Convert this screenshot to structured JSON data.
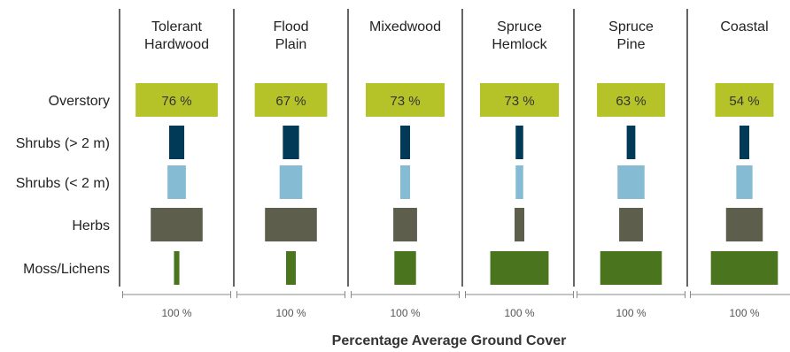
{
  "chart_data": {
    "type": "bar",
    "title": "",
    "xlabel": "Percentage Average Ground Cover",
    "ylabel": "",
    "xlim": [
      0,
      100
    ],
    "layers": [
      "Overstory",
      "Shrubs (> 2 m)",
      "Shrubs (< 2 m)",
      "Herbs",
      "Moss/Lichens"
    ],
    "layer_colors": [
      "#b5c329",
      "#003a57",
      "#85bcd3",
      "#5e5e4c",
      "#4a751e"
    ],
    "scale_label": "100 %",
    "forest_types": [
      {
        "name_lines": [
          "Tolerant",
          "Hardwood"
        ],
        "values": [
          76,
          14,
          17,
          48,
          5
        ],
        "overstory_label": "76 %"
      },
      {
        "name_lines": [
          "Flood",
          "Plain"
        ],
        "values": [
          67,
          15,
          21,
          48,
          9
        ],
        "overstory_label": "67 %"
      },
      {
        "name_lines": [
          "Mixedwood"
        ],
        "values": [
          73,
          9,
          9,
          22,
          20
        ],
        "overstory_label": "73 %"
      },
      {
        "name_lines": [
          "Spruce",
          "Hemlock"
        ],
        "values": [
          73,
          7,
          7,
          9,
          54
        ],
        "overstory_label": "73 %"
      },
      {
        "name_lines": [
          "Spruce",
          "Pine"
        ],
        "values": [
          63,
          8,
          25,
          22,
          57
        ],
        "overstory_label": "63 %"
      },
      {
        "name_lines": [
          "Coastal"
        ],
        "values": [
          54,
          9,
          15,
          34,
          62
        ],
        "overstory_label": "54 %"
      }
    ]
  }
}
